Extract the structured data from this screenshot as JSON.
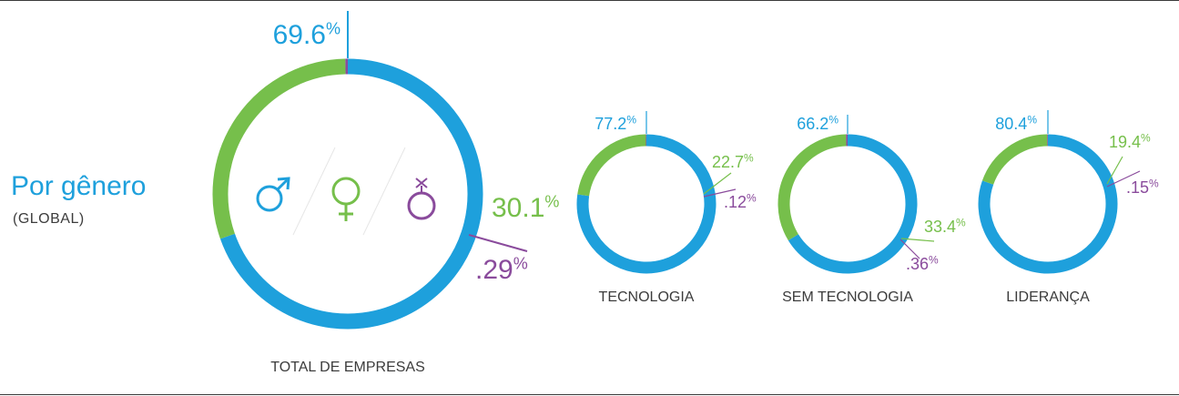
{
  "heading": "Por gênero",
  "subheading": "(GLOBAL)",
  "colors": {
    "male": "#1ea0dc",
    "female": "#76bf4b",
    "other": "#8a4b9c",
    "label_text": "#3c3c3c"
  },
  "icons": [
    "male-symbol-icon",
    "female-symbol-icon",
    "transgender-symbol-icon"
  ],
  "chart_data": [
    {
      "type": "pie",
      "variant": "donut",
      "label": "TOTAL DE EMPRESAS",
      "slices": [
        {
          "category": "male",
          "value": 69.6,
          "label": "69.6"
        },
        {
          "category": "female",
          "value": 30.1,
          "label": "30.1"
        },
        {
          "category": "other",
          "value": 0.29,
          "label": ".29"
        }
      ],
      "unit": "%"
    },
    {
      "type": "pie",
      "variant": "donut",
      "label": "TECNOLOGIA",
      "slices": [
        {
          "category": "male",
          "value": 77.2,
          "label": "77.2"
        },
        {
          "category": "female",
          "value": 22.7,
          "label": "22.7"
        },
        {
          "category": "other",
          "value": 0.12,
          "label": ".12"
        }
      ],
      "unit": "%"
    },
    {
      "type": "pie",
      "variant": "donut",
      "label": "SEM TECNOLOGIA",
      "slices": [
        {
          "category": "male",
          "value": 66.2,
          "label": "66.2"
        },
        {
          "category": "female",
          "value": 33.4,
          "label": "33.4"
        },
        {
          "category": "other",
          "value": 0.36,
          "label": ".36"
        }
      ],
      "unit": "%"
    },
    {
      "type": "pie",
      "variant": "donut",
      "label": "LIDERANÇA",
      "slices": [
        {
          "category": "male",
          "value": 80.4,
          "label": "80.4"
        },
        {
          "category": "female",
          "value": 19.4,
          "label": "19.4"
        },
        {
          "category": "other",
          "value": 0.15,
          "label": ".15"
        }
      ],
      "unit": "%"
    }
  ]
}
